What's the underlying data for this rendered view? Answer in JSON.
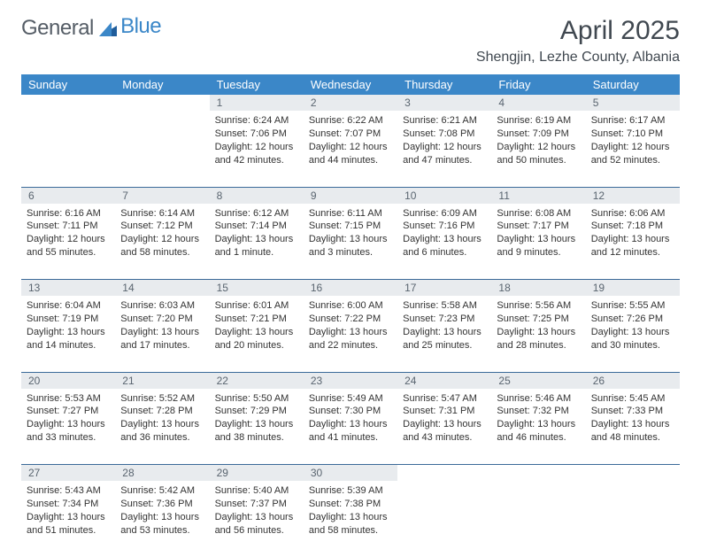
{
  "brand": {
    "part1": "General",
    "part2": "Blue"
  },
  "title": "April 2025",
  "location": "Shengjin, Lezhe County, Albania",
  "colors": {
    "header_bg": "#3b87c8",
    "header_text": "#ffffff",
    "daynum_bg": "#e8ebee",
    "daynum_text": "#5a6570",
    "cell_text": "#333333",
    "divider": "#3b6a99"
  },
  "weekdays": [
    "Sunday",
    "Monday",
    "Tuesday",
    "Wednesday",
    "Thursday",
    "Friday",
    "Saturday"
  ],
  "weeks": [
    {
      "nums": [
        "",
        "",
        "1",
        "2",
        "3",
        "4",
        "5"
      ],
      "cells": [
        null,
        null,
        {
          "sunrise": "Sunrise: 6:24 AM",
          "sunset": "Sunset: 7:06 PM",
          "day1": "Daylight: 12 hours",
          "day2": "and 42 minutes."
        },
        {
          "sunrise": "Sunrise: 6:22 AM",
          "sunset": "Sunset: 7:07 PM",
          "day1": "Daylight: 12 hours",
          "day2": "and 44 minutes."
        },
        {
          "sunrise": "Sunrise: 6:21 AM",
          "sunset": "Sunset: 7:08 PM",
          "day1": "Daylight: 12 hours",
          "day2": "and 47 minutes."
        },
        {
          "sunrise": "Sunrise: 6:19 AM",
          "sunset": "Sunset: 7:09 PM",
          "day1": "Daylight: 12 hours",
          "day2": "and 50 minutes."
        },
        {
          "sunrise": "Sunrise: 6:17 AM",
          "sunset": "Sunset: 7:10 PM",
          "day1": "Daylight: 12 hours",
          "day2": "and 52 minutes."
        }
      ]
    },
    {
      "nums": [
        "6",
        "7",
        "8",
        "9",
        "10",
        "11",
        "12"
      ],
      "cells": [
        {
          "sunrise": "Sunrise: 6:16 AM",
          "sunset": "Sunset: 7:11 PM",
          "day1": "Daylight: 12 hours",
          "day2": "and 55 minutes."
        },
        {
          "sunrise": "Sunrise: 6:14 AM",
          "sunset": "Sunset: 7:12 PM",
          "day1": "Daylight: 12 hours",
          "day2": "and 58 minutes."
        },
        {
          "sunrise": "Sunrise: 6:12 AM",
          "sunset": "Sunset: 7:14 PM",
          "day1": "Daylight: 13 hours",
          "day2": "and 1 minute."
        },
        {
          "sunrise": "Sunrise: 6:11 AM",
          "sunset": "Sunset: 7:15 PM",
          "day1": "Daylight: 13 hours",
          "day2": "and 3 minutes."
        },
        {
          "sunrise": "Sunrise: 6:09 AM",
          "sunset": "Sunset: 7:16 PM",
          "day1": "Daylight: 13 hours",
          "day2": "and 6 minutes."
        },
        {
          "sunrise": "Sunrise: 6:08 AM",
          "sunset": "Sunset: 7:17 PM",
          "day1": "Daylight: 13 hours",
          "day2": "and 9 minutes."
        },
        {
          "sunrise": "Sunrise: 6:06 AM",
          "sunset": "Sunset: 7:18 PM",
          "day1": "Daylight: 13 hours",
          "day2": "and 12 minutes."
        }
      ]
    },
    {
      "nums": [
        "13",
        "14",
        "15",
        "16",
        "17",
        "18",
        "19"
      ],
      "cells": [
        {
          "sunrise": "Sunrise: 6:04 AM",
          "sunset": "Sunset: 7:19 PM",
          "day1": "Daylight: 13 hours",
          "day2": "and 14 minutes."
        },
        {
          "sunrise": "Sunrise: 6:03 AM",
          "sunset": "Sunset: 7:20 PM",
          "day1": "Daylight: 13 hours",
          "day2": "and 17 minutes."
        },
        {
          "sunrise": "Sunrise: 6:01 AM",
          "sunset": "Sunset: 7:21 PM",
          "day1": "Daylight: 13 hours",
          "day2": "and 20 minutes."
        },
        {
          "sunrise": "Sunrise: 6:00 AM",
          "sunset": "Sunset: 7:22 PM",
          "day1": "Daylight: 13 hours",
          "day2": "and 22 minutes."
        },
        {
          "sunrise": "Sunrise: 5:58 AM",
          "sunset": "Sunset: 7:23 PM",
          "day1": "Daylight: 13 hours",
          "day2": "and 25 minutes."
        },
        {
          "sunrise": "Sunrise: 5:56 AM",
          "sunset": "Sunset: 7:25 PM",
          "day1": "Daylight: 13 hours",
          "day2": "and 28 minutes."
        },
        {
          "sunrise": "Sunrise: 5:55 AM",
          "sunset": "Sunset: 7:26 PM",
          "day1": "Daylight: 13 hours",
          "day2": "and 30 minutes."
        }
      ]
    },
    {
      "nums": [
        "20",
        "21",
        "22",
        "23",
        "24",
        "25",
        "26"
      ],
      "cells": [
        {
          "sunrise": "Sunrise: 5:53 AM",
          "sunset": "Sunset: 7:27 PM",
          "day1": "Daylight: 13 hours",
          "day2": "and 33 minutes."
        },
        {
          "sunrise": "Sunrise: 5:52 AM",
          "sunset": "Sunset: 7:28 PM",
          "day1": "Daylight: 13 hours",
          "day2": "and 36 minutes."
        },
        {
          "sunrise": "Sunrise: 5:50 AM",
          "sunset": "Sunset: 7:29 PM",
          "day1": "Daylight: 13 hours",
          "day2": "and 38 minutes."
        },
        {
          "sunrise": "Sunrise: 5:49 AM",
          "sunset": "Sunset: 7:30 PM",
          "day1": "Daylight: 13 hours",
          "day2": "and 41 minutes."
        },
        {
          "sunrise": "Sunrise: 5:47 AM",
          "sunset": "Sunset: 7:31 PM",
          "day1": "Daylight: 13 hours",
          "day2": "and 43 minutes."
        },
        {
          "sunrise": "Sunrise: 5:46 AM",
          "sunset": "Sunset: 7:32 PM",
          "day1": "Daylight: 13 hours",
          "day2": "and 46 minutes."
        },
        {
          "sunrise": "Sunrise: 5:45 AM",
          "sunset": "Sunset: 7:33 PM",
          "day1": "Daylight: 13 hours",
          "day2": "and 48 minutes."
        }
      ]
    },
    {
      "nums": [
        "27",
        "28",
        "29",
        "30",
        "",
        "",
        ""
      ],
      "cells": [
        {
          "sunrise": "Sunrise: 5:43 AM",
          "sunset": "Sunset: 7:34 PM",
          "day1": "Daylight: 13 hours",
          "day2": "and 51 minutes."
        },
        {
          "sunrise": "Sunrise: 5:42 AM",
          "sunset": "Sunset: 7:36 PM",
          "day1": "Daylight: 13 hours",
          "day2": "and 53 minutes."
        },
        {
          "sunrise": "Sunrise: 5:40 AM",
          "sunset": "Sunset: 7:37 PM",
          "day1": "Daylight: 13 hours",
          "day2": "and 56 minutes."
        },
        {
          "sunrise": "Sunrise: 5:39 AM",
          "sunset": "Sunset: 7:38 PM",
          "day1": "Daylight: 13 hours",
          "day2": "and 58 minutes."
        },
        null,
        null,
        null
      ]
    }
  ]
}
